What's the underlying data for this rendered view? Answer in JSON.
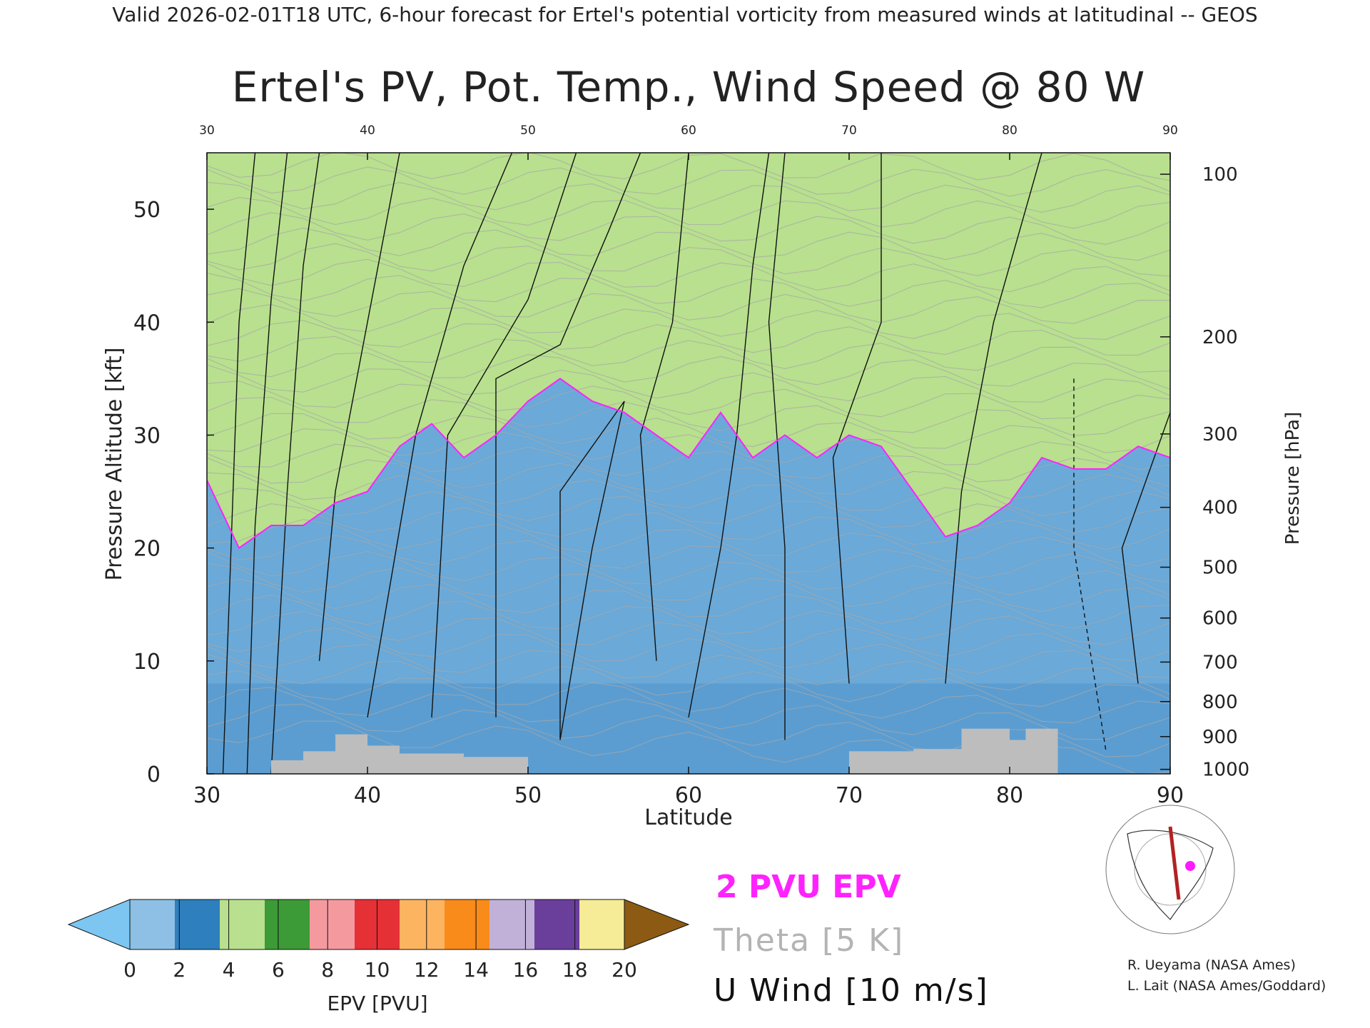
{
  "header": {
    "valid_line": "Valid 2026-02-01T18 UTC, 6-hour forecast for Ertel's potential vorticity from measured winds at latitudinal -- GEOS"
  },
  "chart_data": {
    "type": "heatmap",
    "title": "Ertel's PV, Pot. Temp., Wind Speed @ 80 W",
    "xlabel": "Latitude",
    "ylabel": "Pressure Altitude [kft]",
    "y2label": "Pressure [hPa]",
    "xlim": [
      30,
      90
    ],
    "ylim": [
      0,
      55
    ],
    "x_ticks": [
      30,
      40,
      50,
      60,
      70,
      80,
      90
    ],
    "y_ticks": [
      0,
      10,
      20,
      30,
      40,
      50
    ],
    "pressure_ticks": [
      {
        "hPa": "100",
        "kft": 53.1
      },
      {
        "hPa": "200",
        "kft": 38.7
      },
      {
        "hPa": "300",
        "kft": 30.1
      },
      {
        "hPa": "400",
        "kft": 23.6
      },
      {
        "hPa": "500",
        "kft": 18.3
      },
      {
        "hPa": "600",
        "kft": 13.8
      },
      {
        "hPa": "700",
        "kft": 9.9
      },
      {
        "hPa": "800",
        "kft": 6.4
      },
      {
        "hPa": "900",
        "kft": 3.3
      },
      {
        "hPa": "1000",
        "kft": 0.4
      }
    ],
    "tropopause_2pvu": {
      "lat": [
        30,
        32,
        34,
        36,
        38,
        40,
        42,
        44,
        46,
        48,
        50,
        52,
        54,
        56,
        58,
        60,
        62,
        64,
        66,
        68,
        70,
        72,
        74,
        76,
        78,
        80,
        82,
        84,
        86,
        88,
        90
      ],
      "kft": [
        26,
        20,
        22,
        22,
        24,
        25,
        29,
        31,
        28,
        30,
        33,
        35,
        33,
        32,
        30,
        28,
        32,
        28,
        30,
        28,
        30,
        29,
        25,
        21,
        22,
        24,
        28,
        27,
        27,
        29,
        28
      ]
    },
    "colorbar": {
      "label": "EPV [PVU]",
      "ticks": [
        "0",
        "2",
        "4",
        "6",
        "8",
        "10",
        "12",
        "14",
        "16",
        "18",
        "20"
      ],
      "colors": [
        "#8dc0e4",
        "#2e7fbd",
        "#b8e08e",
        "#3c9a37",
        "#f49a9f",
        "#e53036",
        "#fdb461",
        "#f88b1a",
        "#c1b1d8",
        "#6a3e9b",
        "#f6eb96",
        "#8c5a12"
      ],
      "under_color": "#7dc6f2",
      "over_color": "#8c5a12"
    },
    "legend": [
      {
        "text": "2 PVU EPV",
        "color": "#ff22ff"
      },
      {
        "text": "Theta [5 K]",
        "color": "#b4b4b4"
      },
      {
        "text": "U Wind [10 m/s]",
        "color": "#111111"
      }
    ],
    "inset_map": {
      "cross_section_lon": "80 W",
      "line_color": "#b22222",
      "marker_color": "#ff1aff"
    }
  },
  "credits": [
    "R. Ueyama (NASA Ames)",
    "L. Lait (NASA Ames/Goddard)"
  ]
}
